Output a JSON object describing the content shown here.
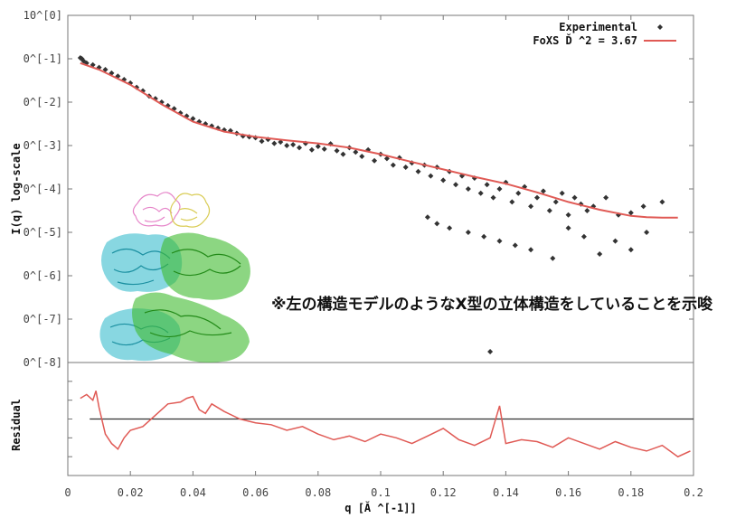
{
  "chart_data": [
    {
      "type": "scatter",
      "title": "",
      "xlabel": "",
      "ylabel": "I(q) log-scale",
      "y_log": true,
      "y_tick_labels": [
        "10^[0]",
        "0^[-1]",
        "0^[-2]",
        "0^[-3]",
        "0^[-4]",
        "0^[-5]",
        "0^[-6]",
        "0^[-7]",
        "0^[-8]"
      ],
      "y_tick_values": [
        0,
        -1,
        -2,
        -3,
        -4,
        -5,
        -6,
        -7,
        -8
      ],
      "xlim": [
        0,
        0.2
      ],
      "ylim": [
        -8,
        0
      ],
      "legend_position": "top-right",
      "series": [
        {
          "name": "Experimental",
          "kind": "points",
          "color": "#333333",
          "x": [
            0.004,
            0.0045,
            0.005,
            0.006,
            0.008,
            0.01,
            0.012,
            0.014,
            0.016,
            0.018,
            0.02,
            0.022,
            0.024,
            0.026,
            0.028,
            0.03,
            0.032,
            0.034,
            0.036,
            0.038,
            0.04,
            0.042,
            0.044,
            0.046,
            0.048,
            0.05,
            0.052,
            0.054,
            0.056,
            0.058,
            0.06,
            0.062,
            0.064,
            0.066,
            0.068,
            0.07,
            0.072,
            0.074,
            0.076,
            0.078,
            0.08,
            0.082,
            0.084,
            0.086,
            0.088,
            0.09,
            0.092,
            0.094,
            0.096,
            0.098,
            0.1,
            0.102,
            0.104,
            0.106,
            0.108,
            0.11,
            0.112,
            0.114,
            0.116,
            0.118,
            0.12,
            0.122,
            0.124,
            0.126,
            0.128,
            0.13,
            0.132,
            0.134,
            0.136,
            0.138,
            0.14,
            0.142,
            0.144,
            0.146,
            0.148,
            0.15,
            0.152,
            0.154,
            0.156,
            0.158,
            0.16,
            0.162,
            0.164,
            0.166,
            0.168,
            0.172,
            0.176,
            0.18,
            0.184,
            0.19,
            0.115,
            0.118,
            0.122,
            0.128,
            0.133,
            0.138,
            0.143,
            0.148,
            0.155,
            0.16,
            0.165,
            0.17,
            0.175,
            0.18,
            0.185,
            0.135
          ],
          "y": [
            -0.98,
            -1.0,
            -1.05,
            -1.1,
            -1.14,
            -1.2,
            -1.25,
            -1.33,
            -1.4,
            -1.48,
            -1.56,
            -1.66,
            -1.74,
            -1.86,
            -1.92,
            -2.0,
            -2.08,
            -2.15,
            -2.25,
            -2.32,
            -2.38,
            -2.45,
            -2.5,
            -2.55,
            -2.6,
            -2.64,
            -2.66,
            -2.72,
            -2.78,
            -2.8,
            -2.82,
            -2.9,
            -2.86,
            -2.95,
            -2.92,
            -3.0,
            -2.98,
            -3.05,
            -2.95,
            -3.1,
            -3.02,
            -3.08,
            -2.96,
            -3.12,
            -3.2,
            -3.05,
            -3.15,
            -3.25,
            -3.1,
            -3.35,
            -3.2,
            -3.3,
            -3.45,
            -3.28,
            -3.5,
            -3.4,
            -3.6,
            -3.45,
            -3.7,
            -3.5,
            -3.8,
            -3.6,
            -3.9,
            -3.7,
            -4.0,
            -3.75,
            -4.1,
            -3.9,
            -4.2,
            -4.0,
            -3.85,
            -4.3,
            -4.1,
            -3.95,
            -4.4,
            -4.2,
            -4.05,
            -4.5,
            -4.3,
            -4.1,
            -4.6,
            -4.2,
            -4.35,
            -4.5,
            -4.4,
            -4.2,
            -4.6,
            -4.55,
            -4.4,
            -4.3,
            -4.65,
            -4.8,
            -4.9,
            -5.0,
            -5.1,
            -5.2,
            -5.3,
            -5.4,
            -5.6,
            -4.9,
            -5.1,
            -5.5,
            -5.2,
            -5.4,
            -5.0,
            -7.75
          ]
        },
        {
          "name": "FoXS Ď ^2 = 3.67",
          "kind": "line",
          "color": "#e05a55",
          "x": [
            0.004,
            0.01,
            0.02,
            0.03,
            0.04,
            0.05,
            0.06,
            0.07,
            0.08,
            0.09,
            0.1,
            0.11,
            0.12,
            0.13,
            0.14,
            0.15,
            0.16,
            0.17,
            0.18,
            0.185,
            0.19,
            0.195
          ],
          "y": [
            -1.1,
            -1.25,
            -1.6,
            -2.05,
            -2.45,
            -2.68,
            -2.8,
            -2.88,
            -2.95,
            -3.05,
            -3.2,
            -3.38,
            -3.55,
            -3.72,
            -3.88,
            -4.08,
            -4.3,
            -4.48,
            -4.62,
            -4.65,
            -4.66,
            -4.66
          ]
        }
      ]
    },
    {
      "type": "line",
      "title": "",
      "xlabel": "q [Ă ^[-1]]",
      "ylabel": "Residual",
      "x_tick_labels": [
        "0",
        "0.02",
        "0.04",
        "0.06",
        "0.08",
        "0.1",
        "0.12",
        "0.14",
        "0.16",
        "0.18",
        "0.2"
      ],
      "x_tick_values": [
        0,
        0.02,
        0.04,
        0.06,
        0.08,
        0.1,
        0.12,
        0.14,
        0.16,
        0.18,
        0.2
      ],
      "xlim": [
        0,
        0.2
      ],
      "ylim": [
        -3,
        3
      ],
      "series": [
        {
          "name": "",
          "kind": "line",
          "color": "#e05a55",
          "x": [
            0.004,
            0.006,
            0.008,
            0.009,
            0.01,
            0.012,
            0.014,
            0.016,
            0.018,
            0.02,
            0.024,
            0.028,
            0.032,
            0.036,
            0.038,
            0.04,
            0.042,
            0.044,
            0.046,
            0.05,
            0.055,
            0.06,
            0.065,
            0.07,
            0.075,
            0.08,
            0.085,
            0.09,
            0.095,
            0.1,
            0.105,
            0.11,
            0.115,
            0.12,
            0.125,
            0.13,
            0.135,
            0.138,
            0.14,
            0.145,
            0.15,
            0.155,
            0.16,
            0.165,
            0.17,
            0.175,
            0.18,
            0.185,
            0.19,
            0.195,
            0.199
          ],
          "y": [
            1.1,
            1.3,
            1.0,
            1.5,
            0.6,
            -0.8,
            -1.3,
            -1.6,
            -1.0,
            -0.6,
            -0.4,
            0.2,
            0.8,
            0.9,
            1.1,
            1.2,
            0.5,
            0.3,
            0.8,
            0.4,
            0.0,
            -0.2,
            -0.3,
            -0.6,
            -0.4,
            -0.8,
            -1.1,
            -0.9,
            -1.2,
            -0.8,
            -1.0,
            -1.3,
            -0.9,
            -0.5,
            -1.1,
            -1.4,
            -1.0,
            0.7,
            -1.3,
            -1.1,
            -1.2,
            -1.5,
            -1.0,
            -1.3,
            -1.6,
            -1.2,
            -1.5,
            -1.7,
            -1.4,
            -2.0,
            -1.7
          ]
        },
        {
          "name": "",
          "kind": "hline",
          "color": "#333333",
          "y": 0
        }
      ]
    }
  ],
  "legend": {
    "experimental_label": "Experimental",
    "foxs_label": "FoXS Ď ^2 = 3.67"
  },
  "annotation": "※左の構造モデルのようなX型の立体構造をしていることを示唆",
  "colors": {
    "fit_line": "#e05a55",
    "points": "#333333",
    "axis": "#666666",
    "model_cyan": "#27b6c9",
    "model_green": "#3fbb2f",
    "model_pink": "#e685c9",
    "model_yellow": "#d9cc55"
  },
  "icons": {
    "structure_model": "protein-structure-illustration"
  }
}
